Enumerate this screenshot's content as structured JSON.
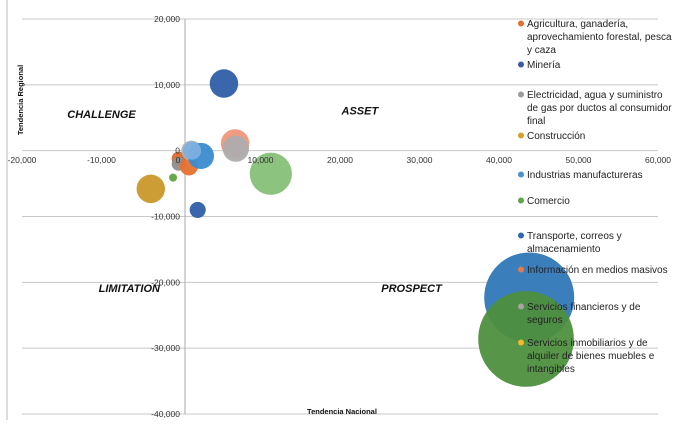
{
  "chart_data": {
    "type": "bubble",
    "xlabel": "Tendencia Nacional",
    "ylabel": "Tendencia Regional",
    "xlim": [
      -20000,
      60000
    ],
    "ylim": [
      -40000,
      20000
    ],
    "x_ticks": [
      "-20,000",
      "-10,000",
      "0",
      "10,000",
      "20,000",
      "30,000",
      "40,000",
      "50,000",
      "60,000"
    ],
    "y_ticks": [
      "20,000",
      "10,000",
      "0",
      "-10,000",
      "-20,000",
      "-30,000",
      "-40,000"
    ],
    "grid": "horizontal",
    "legend_position": "right",
    "quadrant_labels": [
      {
        "text": "CHALLENGE",
        "x": -10000,
        "y": 5000
      },
      {
        "text": "ASSET",
        "x": 22500,
        "y": 5500
      },
      {
        "text": "LIMITATION",
        "x": -6500,
        "y": -21500
      },
      {
        "text": "PROSPECT",
        "x": 29000,
        "y": -21500
      }
    ],
    "series": [
      {
        "name": "Agricultura, ganadería, aprovechamiento forestal, pesca y caza",
        "color": "#E2702F",
        "legend_lines": [
          "Agricultura, ganadería,",
          "aprovechamiento forestal, pesca",
          "y caza"
        ]
      },
      {
        "name": "Minería",
        "color": "#3A5BA8",
        "legend_lines": [
          "Minería"
        ]
      },
      {
        "name": "Electricidad, agua y suministro de gas por ductos al consumidor final",
        "color": "#9A9A9A",
        "legend_lines": [
          "Electricidad, agua y suministro",
          "de gas por ductos al consumidor",
          "final"
        ]
      },
      {
        "name": "Construcción",
        "color": "#D5A22A",
        "legend_lines": [
          "Construcción"
        ]
      },
      {
        "name": "Industrias manufactureras",
        "color": "#4E92D0",
        "legend_lines": [
          "Industrias manufactureras"
        ]
      },
      {
        "name": "Comercio",
        "color": "#62A345",
        "legend_lines": [
          "Comercio"
        ]
      },
      {
        "name": "Transporte, correos y almacenamiento",
        "color": "#2F6AB0",
        "legend_lines": [
          "Transporte, correos y",
          "almacenamiento"
        ]
      },
      {
        "name": "Información en medios masivos",
        "color": "#E67A4C",
        "legend_lines": [
          "Información en medios masivos"
        ]
      },
      {
        "name": "Servicios financieros y de seguros",
        "color": "#A5A5A5",
        "legend_lines": [
          "Servicios financieros y de",
          "seguros"
        ]
      },
      {
        "name": "Servicios inmobiliarios y de alquiler de bienes muebles e intangibles",
        "color": "#F2B830",
        "legend_lines": [
          "Servicios inmobiliarios y de",
          "alquiler de bienes muebles e",
          "intangibles"
        ]
      }
    ],
    "bubbles": [
      {
        "x": 43800,
        "y": -22300,
        "size": 100,
        "color": "#2F78B8"
      },
      {
        "x": 43400,
        "y": -28600,
        "size": 113,
        "color": "#4E8F3E"
      },
      {
        "x": 11300,
        "y": -3500,
        "size": 22,
        "color": "#86C077"
      },
      {
        "x": 5400,
        "y": 10200,
        "size": 10,
        "color": "#2F5FA8"
      },
      {
        "x": 6800,
        "y": 1100,
        "size": 10,
        "color": "#F0977A"
      },
      {
        "x": 6900,
        "y": 300,
        "size": 8.5,
        "color": "#ADADAD"
      },
      {
        "x": -3800,
        "y": -5800,
        "size": 10,
        "color": "#C9982A"
      },
      {
        "x": 2100,
        "y": -9000,
        "size": 3.2,
        "color": "#2F5FA8"
      },
      {
        "x": -1000,
        "y": -4100,
        "size": 0.8,
        "color": "#62A345"
      },
      {
        "x": -300,
        "y": -1200,
        "size": 2.4,
        "color": "#D9682E"
      },
      {
        "x": -300,
        "y": -2000,
        "size": 2.4,
        "color": "#8E8E8E"
      },
      {
        "x": 1000,
        "y": -2400,
        "size": 4,
        "color": "#E8702E"
      },
      {
        "x": 1300,
        "y": 0,
        "size": 5,
        "color": "#B0B0B0"
      },
      {
        "x": 2500,
        "y": -800,
        "size": 8.5,
        "color": "#3A8CD0"
      },
      {
        "x": 1400,
        "y": 0,
        "size": 4,
        "color": "#7DB0E0"
      }
    ]
  }
}
